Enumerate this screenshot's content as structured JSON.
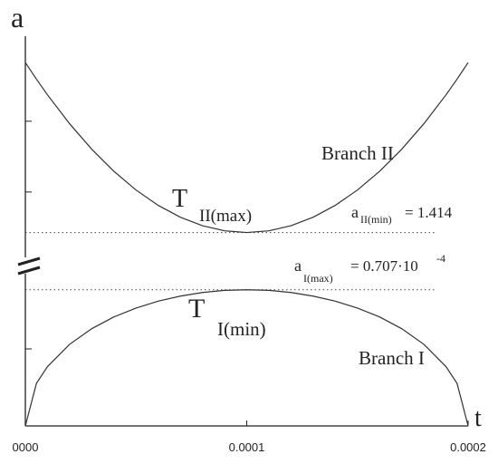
{
  "chart_data": {
    "type": "line",
    "x_label": "t",
    "y_label": "a",
    "x": [
      0,
      5e-06,
      1e-05,
      2e-05,
      3e-05,
      4e-05,
      5e-05,
      6e-05,
      7e-05,
      8e-05,
      9e-05,
      0.0001,
      0.00011,
      0.00012,
      0.00013,
      0.00014,
      0.00015,
      0.00016,
      0.00017,
      0.00018,
      0.00019,
      0.000195,
      0.0002
    ],
    "series": [
      {
        "name": "Branch II",
        "color": "#333333",
        "axis": "y2",
        "values": [
          2.614,
          2.497,
          2.386,
          2.182,
          2.002,
          1.846,
          1.714,
          1.606,
          1.522,
          1.462,
          1.426,
          1.414,
          1.426,
          1.462,
          1.522,
          1.606,
          1.714,
          1.846,
          2.002,
          2.182,
          2.386,
          2.497,
          2.614
        ]
      },
      {
        "name": "Branch I",
        "color": "#333333",
        "values": [
          0,
          2.21e-05,
          3.08e-05,
          4.24e-05,
          5.05e-05,
          5.66e-05,
          6.12e-05,
          6.48e-05,
          6.74e-05,
          6.93e-05,
          7.04e-05,
          7.07e-05,
          7.04e-05,
          6.93e-05,
          6.74e-05,
          6.48e-05,
          6.12e-05,
          5.66e-05,
          5.05e-05,
          4.24e-05,
          3.08e-05,
          2.21e-05,
          0
        ]
      }
    ],
    "xlim": [
      0,
      0.0002
    ],
    "xticks": [
      {
        "value": 0,
        "label": "0000"
      },
      0.0001,
      0.0002
    ],
    "ylim": [
      0,
      8e-05
    ],
    "yticks": [
      0,
      4e-05
    ],
    "y2lim": [
      1.2,
      2.8
    ],
    "y2ticks": [
      1.7,
      2.2
    ],
    "reference_lines": [
      {
        "axis": "y2",
        "value": 1.414
      },
      {
        "axis": "y",
        "value": 7.07e-05
      }
    ],
    "annotations": [
      {
        "base": "T",
        "sub": "II(max)"
      },
      {
        "base": "T",
        "sub": "I(min)"
      },
      {
        "base": "a",
        "sub": "II(min)",
        "text": "= 1.414"
      },
      {
        "base": "a",
        "sub": "I(max)",
        "text": "= 0.707·10",
        "sup": "-4"
      }
    ]
  }
}
